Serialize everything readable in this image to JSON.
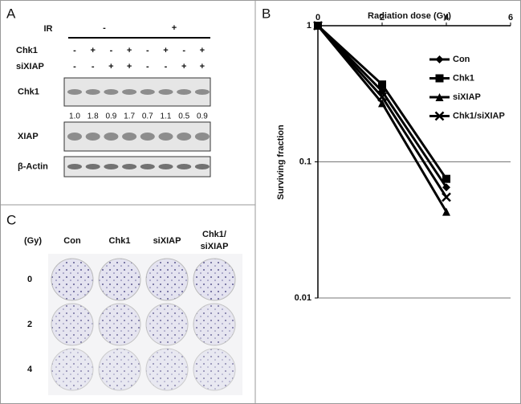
{
  "panel_a": {
    "label": "A",
    "ir_label": "IR",
    "ir_groups": [
      "-",
      "+"
    ],
    "rows": [
      {
        "label": "Chk1",
        "signs": [
          "-",
          "+",
          "-",
          "+",
          "-",
          "+",
          "-",
          "+"
        ]
      },
      {
        "label": "siXIAP",
        "signs": [
          "-",
          "-",
          "+",
          "+",
          "-",
          "-",
          "+",
          "+"
        ]
      }
    ],
    "blots": [
      "Chk1",
      "XIAP",
      "β-Actin"
    ],
    "chk1_quant": [
      "1.0",
      "1.8",
      "0.9",
      "1.7",
      "0.7",
      "1.1",
      "0.5",
      "0.9"
    ]
  },
  "panel_b": {
    "label": "B"
  },
  "chart_data": {
    "type": "line",
    "title": "Radiation dose (Gy)",
    "y_label": "Surviving fraction",
    "x": [
      0,
      2,
      4
    ],
    "xlim": [
      0,
      6
    ],
    "xticks": [
      0,
      2,
      4,
      6
    ],
    "ylim": [
      0.01,
      1
    ],
    "yticks": [
      0.01,
      0.1,
      1
    ],
    "log_y": true,
    "grid": true,
    "legend": "right",
    "series": [
      {
        "name": "Con",
        "color": "#000000",
        "marker": "diamond",
        "values": [
          1,
          0.33,
          0.065
        ]
      },
      {
        "name": "Chk1",
        "color": "#000000",
        "marker": "square",
        "values": [
          1,
          0.37,
          0.075
        ]
      },
      {
        "name": "siXIAP",
        "color": "#000000",
        "marker": "triangle",
        "values": [
          1,
          0.27,
          0.043
        ]
      },
      {
        "name": "Chk1/siXIAP",
        "color": "#000000",
        "marker": "cross",
        "values": [
          1,
          0.3,
          0.055
        ]
      }
    ]
  },
  "panel_c": {
    "label": "C",
    "unit": "(Gy)",
    "columns": [
      [
        "Con"
      ],
      [
        "Chk1"
      ],
      [
        "siXIAP"
      ],
      [
        "Chk1/",
        "siXIAP"
      ]
    ],
    "rows": [
      "0",
      "2",
      "4"
    ]
  }
}
